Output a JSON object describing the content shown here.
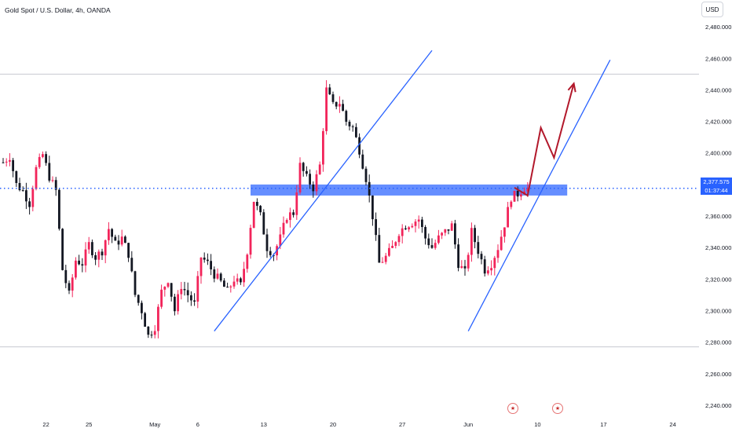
{
  "header": {
    "title": "Gold Spot / U.S. Dollar, 4h, OANDA",
    "currency_button": "USD"
  },
  "price_label": {
    "price": "2,377.575",
    "countdown": "01:37:44"
  },
  "event_icons": [
    "us-flag-icon",
    "us-flag-icon"
  ],
  "colors": {
    "up": "#089981",
    "down": "#f23645",
    "candle_up": "#f2245a",
    "candle_down": "#131722",
    "trendline": "#2962ff",
    "zone": "#2962ff",
    "projection": "#b2182b",
    "axis_text": "#131722"
  },
  "chart_data": {
    "type": "candlestick",
    "title": "Gold Spot / U.S. Dollar, 4h, OANDA",
    "xlabel": "",
    "ylabel": "",
    "ylim": [
      2232,
      2497
    ],
    "y_ticks": [
      "2,480.000",
      "2,460.000",
      "2,440.000",
      "2,420.000",
      "2,400.000",
      "2,380.000",
      "2,360.000",
      "2,340.000",
      "2,320.000",
      "2,300.000",
      "2,280.000",
      "2,260.000",
      "2,240.000"
    ],
    "y_tick_values": [
      2480,
      2460,
      2440,
      2420,
      2400,
      2380,
      2360,
      2340,
      2320,
      2300,
      2280,
      2260,
      2240
    ],
    "x_ticks": [
      "22",
      "25",
      "May",
      "6",
      "13",
      "20",
      "27",
      "Jun",
      "10",
      "17",
      "24"
    ],
    "x_tick_index": [
      13,
      26,
      46,
      59,
      79,
      100,
      121,
      141,
      162,
      182,
      203
    ],
    "candle_count": 160,
    "last_price": 2377.575,
    "anchors": [
      [
        0,
        2394
      ],
      [
        2,
        2398
      ],
      [
        4,
        2380
      ],
      [
        6,
        2376
      ],
      [
        8,
        2368
      ],
      [
        10,
        2390
      ],
      [
        12,
        2399
      ],
      [
        14,
        2385
      ],
      [
        16,
        2376
      ],
      [
        18,
        2326
      ],
      [
        20,
        2310
      ],
      [
        22,
        2332
      ],
      [
        24,
        2330
      ],
      [
        26,
        2342
      ],
      [
        28,
        2334
      ],
      [
        30,
        2338
      ],
      [
        32,
        2352
      ],
      [
        34,
        2342
      ],
      [
        36,
        2346
      ],
      [
        38,
        2336
      ],
      [
        40,
        2310
      ],
      [
        42,
        2300
      ],
      [
        44,
        2284
      ],
      [
        46,
        2290
      ],
      [
        48,
        2312
      ],
      [
        50,
        2320
      ],
      [
        52,
        2300
      ],
      [
        54,
        2316
      ],
      [
        56,
        2310
      ],
      [
        58,
        2304
      ],
      [
        60,
        2334
      ],
      [
        62,
        2330
      ],
      [
        64,
        2323
      ],
      [
        66,
        2318
      ],
      [
        68,
        2312
      ],
      [
        70,
        2320
      ],
      [
        72,
        2316
      ],
      [
        74,
        2338
      ],
      [
        76,
        2370
      ],
      [
        78,
        2360
      ],
      [
        80,
        2340
      ],
      [
        82,
        2336
      ],
      [
        84,
        2346
      ],
      [
        86,
        2360
      ],
      [
        88,
        2362
      ],
      [
        90,
        2392
      ],
      [
        92,
        2384
      ],
      [
        94,
        2378
      ],
      [
        96,
        2392
      ],
      [
        98,
        2440
      ],
      [
        100,
        2430
      ],
      [
        102,
        2432
      ],
      [
        104,
        2420
      ],
      [
        106,
        2416
      ],
      [
        108,
        2402
      ],
      [
        110,
        2384
      ],
      [
        112,
        2360
      ],
      [
        114,
        2330
      ],
      [
        116,
        2334
      ],
      [
        118,
        2340
      ],
      [
        120,
        2350
      ],
      [
        122,
        2354
      ],
      [
        124,
        2356
      ],
      [
        126,
        2358
      ],
      [
        128,
        2346
      ],
      [
        130,
        2340
      ],
      [
        132,
        2346
      ],
      [
        134,
        2350
      ],
      [
        136,
        2354
      ],
      [
        138,
        2330
      ],
      [
        140,
        2324
      ],
      [
        142,
        2350
      ],
      [
        144,
        2338
      ],
      [
        146,
        2326
      ],
      [
        148,
        2330
      ],
      [
        150,
        2340
      ],
      [
        152,
        2355
      ],
      [
        154,
        2372
      ],
      [
        156,
        2374
      ],
      [
        158,
        2378
      ],
      [
        159,
        2377.575
      ]
    ],
    "zone": {
      "x0": 75,
      "x1": 171,
      "ymin": 2373,
      "ymax": 2380
    },
    "horizontal_lines": [
      2450,
      2277
    ],
    "trendlines": [
      {
        "x0": 64,
        "y0": 2287,
        "x1": 130,
        "y1": 2465
      },
      {
        "x0": 141,
        "y0": 2287,
        "x1": 184,
        "y1": 2459
      }
    ],
    "projection_path": [
      [
        155,
        2378
      ],
      [
        159,
        2373
      ],
      [
        163,
        2416
      ],
      [
        167,
        2397
      ],
      [
        173,
        2444
      ]
    ],
    "last_price_line": 2377.575,
    "grid": false,
    "legend": "none"
  }
}
